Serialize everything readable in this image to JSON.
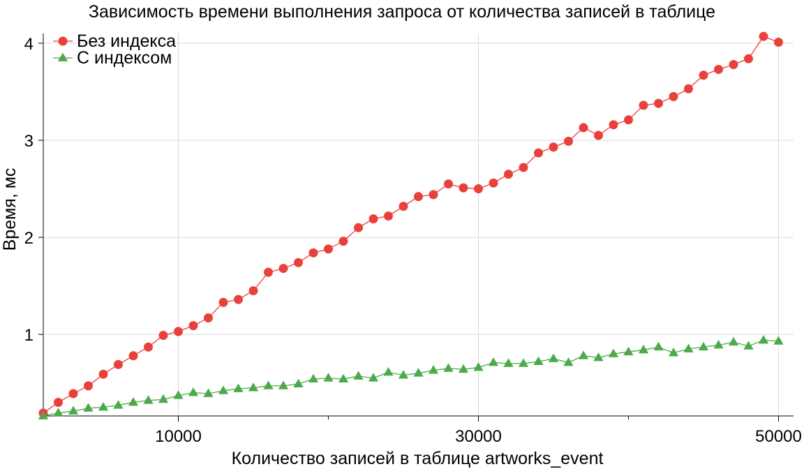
{
  "chart_data": {
    "type": "line",
    "title": "Зависимость времени выполнения запроса от количества записей в таблице",
    "xlabel": "Количество записей в таблице artworks_event",
    "ylabel": "Время, мс",
    "xlim": [
      1000,
      51000
    ],
    "ylim": [
      0.16,
      4.1
    ],
    "x_ticks": [
      10000,
      30000,
      50000
    ],
    "x_minor_ticks": [
      20000,
      40000
    ],
    "y_ticks": [
      1,
      2,
      3,
      4
    ],
    "grid": true,
    "legend_position": "top-left",
    "x": [
      1000,
      2000,
      3000,
      4000,
      5000,
      6000,
      7000,
      8000,
      9000,
      10000,
      11000,
      12000,
      13000,
      14000,
      15000,
      16000,
      17000,
      18000,
      19000,
      20000,
      21000,
      22000,
      23000,
      24000,
      25000,
      26000,
      27000,
      28000,
      29000,
      30000,
      31000,
      32000,
      33000,
      34000,
      35000,
      36000,
      37000,
      38000,
      39000,
      40000,
      41000,
      42000,
      43000,
      44000,
      45000,
      46000,
      47000,
      48000,
      49000,
      50000
    ],
    "series": [
      {
        "name": "Без индекса",
        "color": "#e8413c",
        "marker": "circle",
        "values": [
          0.19,
          0.3,
          0.39,
          0.47,
          0.59,
          0.69,
          0.78,
          0.87,
          0.99,
          1.03,
          1.09,
          1.17,
          1.33,
          1.36,
          1.45,
          1.64,
          1.68,
          1.74,
          1.84,
          1.88,
          1.96,
          2.1,
          2.19,
          2.22,
          2.32,
          2.42,
          2.44,
          2.55,
          2.51,
          2.5,
          2.56,
          2.65,
          2.72,
          2.87,
          2.93,
          2.99,
          3.13,
          3.05,
          3.16,
          3.21,
          3.36,
          3.38,
          3.45,
          3.53,
          3.67,
          3.73,
          3.78,
          3.84,
          4.07,
          4.01
        ]
      },
      {
        "name": "С индексом",
        "color": "#4daa4a",
        "marker": "triangle",
        "values": [
          0.16,
          0.19,
          0.21,
          0.24,
          0.25,
          0.27,
          0.3,
          0.32,
          0.33,
          0.37,
          0.4,
          0.39,
          0.42,
          0.44,
          0.45,
          0.47,
          0.47,
          0.49,
          0.54,
          0.55,
          0.54,
          0.57,
          0.55,
          0.61,
          0.58,
          0.6,
          0.63,
          0.65,
          0.64,
          0.66,
          0.71,
          0.7,
          0.7,
          0.72,
          0.75,
          0.71,
          0.78,
          0.76,
          0.8,
          0.82,
          0.84,
          0.87,
          0.81,
          0.85,
          0.87,
          0.89,
          0.92,
          0.88,
          0.94,
          0.93
        ]
      }
    ]
  }
}
